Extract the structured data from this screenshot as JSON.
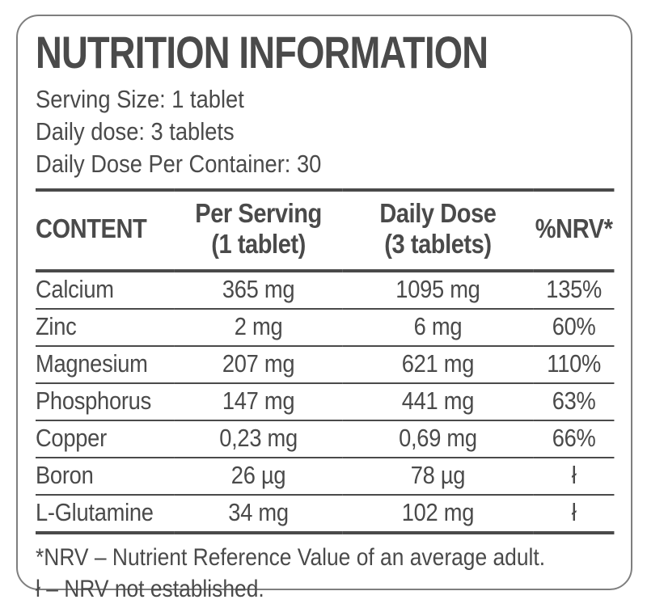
{
  "label": {
    "title": "NUTRITION INFORMATION",
    "serving_lines": [
      "Serving Size: 1 tablet",
      "Daily dose: 3 tablets",
      "Daily Dose Per Container: 30"
    ]
  },
  "table": {
    "headers": {
      "content": "CONTENT",
      "per_serving_line1": "Per Serving",
      "per_serving_line2": "(1 tablet)",
      "daily_dose_line1": "Daily Dose",
      "daily_dose_line2": "(3 tablets)",
      "nrv": "%NRV*"
    },
    "rows": [
      {
        "name": "Calcium",
        "per_serving": "365 mg",
        "daily_dose": "1095 mg",
        "nrv": "135%"
      },
      {
        "name": "Zinc",
        "per_serving": "2 mg",
        "daily_dose": "6 mg",
        "nrv": "60%"
      },
      {
        "name": "Magnesium",
        "per_serving": "207 mg",
        "daily_dose": "621 mg",
        "nrv": "110%"
      },
      {
        "name": "Phosphorus",
        "per_serving": "147 mg",
        "daily_dose": "441 mg",
        "nrv": "63%"
      },
      {
        "name": "Copper",
        "per_serving": "0,23 mg",
        "daily_dose": "0,69 mg",
        "nrv": "66%"
      },
      {
        "name": "Boron",
        "per_serving": "26 µg",
        "daily_dose": "78 µg",
        "nrv": "ł"
      },
      {
        "name": "L-Glutamine",
        "per_serving": "34 mg",
        "daily_dose": "102 mg",
        "nrv": "ł"
      }
    ]
  },
  "footnotes": [
    "*NRV – Nutrient Reference Value of an average adult.",
    "ł – NRV not established."
  ],
  "colors": {
    "text": "#4a4a4a",
    "line": "#4a4a4a",
    "border-col": "#7f7f7f",
    "bg": "#ffffff"
  }
}
